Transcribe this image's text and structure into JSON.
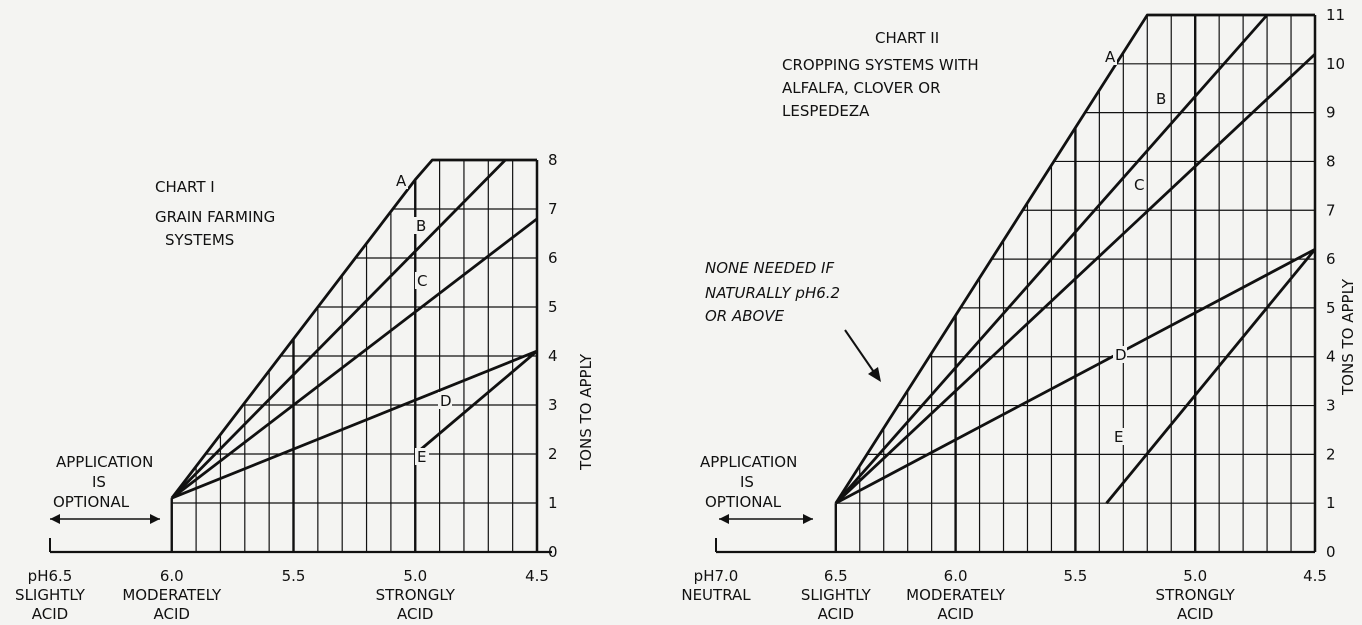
{
  "chart_data": [
    {
      "type": "line",
      "id": "chart1",
      "title": "CHART I",
      "subtitle": [
        "GRAIN FARMING",
        "SYSTEMS"
      ],
      "ylabel": "TONS TO APPLY",
      "xlim": [
        6.5,
        4.5
      ],
      "ylim": [
        0,
        8
      ],
      "grid": true,
      "x_ticks": [
        {
          "x": 6.5,
          "text": "pH6.5",
          "sub": [
            "SLIGHTLY",
            "ACID"
          ]
        },
        {
          "x": 6.0,
          "text": "6.0",
          "sub": [
            "MODERATELY",
            "ACID"
          ]
        },
        {
          "x": 5.5,
          "text": "5.5",
          "sub": []
        },
        {
          "x": 5.0,
          "text": "5.0",
          "sub": [
            "STRONGLY",
            "ACID"
          ]
        },
        {
          "x": 4.5,
          "text": "4.5",
          "sub": []
        }
      ],
      "y_ticks": [
        "0",
        "1",
        "2",
        "3",
        "4",
        "5",
        "6",
        "7",
        "8"
      ],
      "series": [
        {
          "name": "A",
          "points": [
            [
              6.0,
              1.1
            ],
            [
              5.0,
              7.6
            ],
            [
              4.93,
              8.0
            ],
            [
              4.5,
              8.0
            ]
          ]
        },
        {
          "name": "B",
          "points": [
            [
              6.0,
              1.1
            ],
            [
              4.63,
              8.0
            ]
          ]
        },
        {
          "name": "C",
          "points": [
            [
              6.0,
              1.1
            ],
            [
              4.5,
              6.8
            ]
          ]
        },
        {
          "name": "D",
          "points": [
            [
              6.0,
              1.1
            ],
            [
              5.0,
              3.1
            ],
            [
              4.5,
              4.1
            ]
          ]
        },
        {
          "name": "E",
          "points": [
            [
              5.0,
              2.0
            ],
            [
              4.5,
              4.1
            ]
          ]
        }
      ],
      "annotation": {
        "lines": [
          "APPLICATION",
          "IS",
          "OPTIONAL"
        ]
      }
    },
    {
      "type": "line",
      "id": "chart2",
      "title": "CHART II",
      "subtitle": [
        "CROPPING SYSTEMS WITH",
        "ALFALFA, CLOVER OR",
        "LESPEDEZA"
      ],
      "ylabel": "TONS TO APPLY",
      "xlim": [
        7.0,
        4.5
      ],
      "ylim": [
        0,
        11
      ],
      "grid": true,
      "x_ticks": [
        {
          "x": 7.0,
          "text": "pH7.0",
          "sub": [
            "NEUTRAL"
          ]
        },
        {
          "x": 6.5,
          "text": "6.5",
          "sub": [
            "SLIGHTLY",
            "ACID"
          ]
        },
        {
          "x": 6.0,
          "text": "6.0",
          "sub": [
            "MODERATELY",
            "ACID"
          ]
        },
        {
          "x": 5.5,
          "text": "5.5",
          "sub": []
        },
        {
          "x": 5.0,
          "text": "5.0",
          "sub": [
            "STRONGLY",
            "ACID"
          ]
        },
        {
          "x": 4.5,
          "text": "4.5",
          "sub": []
        }
      ],
      "y_ticks": [
        "0",
        "1",
        "2",
        "3",
        "4",
        "5",
        "6",
        "7",
        "8",
        "9",
        "10",
        "11"
      ],
      "series": [
        {
          "name": "A",
          "points": [
            [
              6.5,
              1.0
            ],
            [
              5.2,
              11.0
            ],
            [
              4.5,
              11.0
            ]
          ]
        },
        {
          "name": "B",
          "points": [
            [
              6.5,
              1.0
            ],
            [
              4.7,
              11.0
            ]
          ]
        },
        {
          "name": "C",
          "points": [
            [
              6.5,
              1.0
            ],
            [
              4.5,
              10.2
            ]
          ]
        },
        {
          "name": "D",
          "points": [
            [
              6.5,
              1.0
            ],
            [
              4.5,
              6.2
            ]
          ]
        },
        {
          "name": "E",
          "points": [
            [
              5.37,
              1.0
            ],
            [
              4.5,
              6.2
            ]
          ]
        }
      ],
      "annotation": {
        "lines": [
          "APPLICATION",
          "IS",
          "OPTIONAL"
        ]
      },
      "note": {
        "lines": [
          "NONE NEEDED IF",
          "NATURALLY pH6.2",
          "OR ABOVE"
        ]
      }
    }
  ]
}
